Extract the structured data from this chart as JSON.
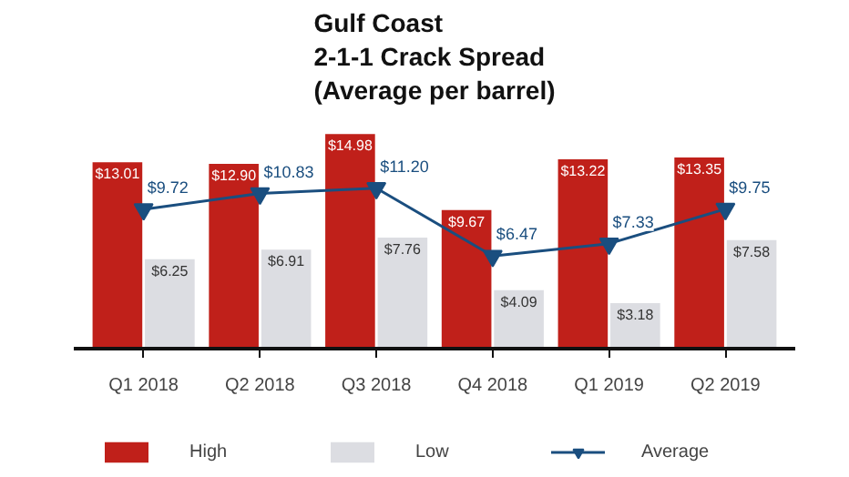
{
  "chart_data": {
    "type": "bar",
    "title": "Gulf Coast\n2-1-1 Crack Spread\n(Average per barrel)",
    "categories": [
      "Q1 2018",
      "Q2 2018",
      "Q3 2018",
      "Q4 2018",
      "Q1 2019",
      "Q2 2019"
    ],
    "series": [
      {
        "name": "High",
        "color": "#c0201a",
        "values": [
          13.01,
          12.9,
          14.98,
          9.67,
          13.22,
          13.35
        ],
        "value_labels": [
          "$13.01",
          "$12.90",
          "$14.98",
          "$9.67",
          "$13.22",
          "$13.35"
        ]
      },
      {
        "name": "Low",
        "color": "#dcdde2",
        "values": [
          6.25,
          6.91,
          7.76,
          4.09,
          3.18,
          7.58
        ],
        "value_labels": [
          "$6.25",
          "$6.91",
          "$7.76",
          "$4.09",
          "$3.18",
          "$7.58"
        ]
      },
      {
        "name": "Average",
        "type": "line",
        "color": "#1a4e7f",
        "marker": "triangle",
        "values": [
          9.72,
          10.83,
          11.2,
          6.47,
          7.33,
          9.75
        ],
        "value_labels": [
          "$9.72",
          "$10.83",
          "$11.20",
          "$6.47",
          "$7.33",
          "$9.75"
        ]
      }
    ],
    "legend": "bottom"
  }
}
